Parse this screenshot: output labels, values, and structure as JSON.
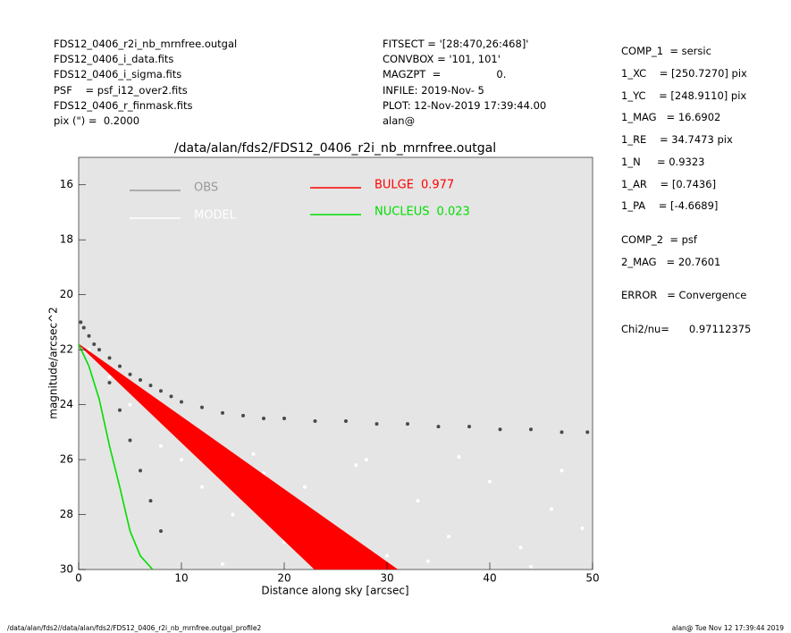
{
  "header": {
    "left": [
      "FDS12_0406_r2i_nb_mrnfree.outgal",
      "FDS12_0406_i_data.fits",
      "FDS12_0406_i_sigma.fits",
      "PSF    = psf_i12_over2.fits",
      "FDS12_0406_r_finmask.fits",
      "pix (\") =  0.2000"
    ],
    "middle": [
      "FITSECT = '[28:470,26:468]'",
      "CONVBOX = '101, 101'",
      "MAGZPT  =                 0.",
      "INFILE: 2019-Nov- 5",
      "PLOT: 12-Nov-2019 17:39:44.00",
      "alan@"
    ],
    "right": [
      "COMP_1  = sersic",
      "1_XC    = [250.7270] pix",
      "1_YC    = [248.9110] pix",
      "1_MAG   = 16.6902",
      "1_RE    = 34.7473 pix",
      "1_N     = 0.9323",
      "1_AR    = [0.7436]",
      "1_PA    = [-4.6689]",
      "COMP_2  = psf",
      "2_MAG   = 20.7601",
      "ERROR   = Convergence",
      "Chi2/nu=      0.97112375"
    ]
  },
  "footer": {
    "left": "/data/alan/fds2//data/alan/fds2/FDS12_0406_r2i_nb_mrnfree.outgal_profile2",
    "right": "alan@  Tue Nov 12 17:39:44 2019"
  },
  "chart_data": {
    "type": "scatter",
    "title": "/data/alan/fds2/FDS12_0406_r2i_nb_mrnfree.outgal",
    "x_label": "Distance along sky [arcsec]",
    "y_label": "magnitude/arcsec^2",
    "xlim": [
      0,
      50
    ],
    "ylim": [
      15,
      30
    ],
    "y_inverted": true,
    "xticks": [
      0,
      10,
      20,
      30,
      40,
      50
    ],
    "yticks": [
      16,
      18,
      20,
      22,
      24,
      26,
      28,
      30
    ],
    "background": "#e5e5e5",
    "series": [
      {
        "name": "OBS",
        "color": "#4a4a4a",
        "legend_color": "#999999",
        "x": [
          0.2,
          0.5,
          1,
          1.5,
          2,
          3,
          4,
          5,
          6,
          7,
          8,
          9,
          10,
          12,
          14,
          16,
          18,
          20,
          23,
          26,
          29,
          32,
          35,
          38,
          41,
          44,
          47,
          49.5,
          3,
          4,
          5,
          6,
          7,
          8
        ],
        "values": [
          21.0,
          21.2,
          21.5,
          21.8,
          22.0,
          22.3,
          22.6,
          22.9,
          23.1,
          23.3,
          23.5,
          23.7,
          23.9,
          24.1,
          24.3,
          24.4,
          24.5,
          24.5,
          24.6,
          24.6,
          24.7,
          24.7,
          24.8,
          24.8,
          24.9,
          24.9,
          25.0,
          25.0,
          23.2,
          24.2,
          25.3,
          26.4,
          27.5,
          28.6
        ]
      },
      {
        "name": "MODEL",
        "color": "#ffffff",
        "legend_color": "#ffffff",
        "x": [
          1,
          3,
          5,
          8,
          10,
          12,
          15,
          18,
          20,
          22,
          25,
          28,
          30,
          33,
          36,
          40,
          43,
          46,
          49,
          14,
          24,
          34,
          44,
          17,
          27,
          37,
          47
        ],
        "values": [
          22,
          23,
          24,
          25.5,
          26,
          27,
          28,
          26.5,
          29,
          27,
          28.5,
          26,
          29.5,
          27.5,
          28.8,
          26.8,
          29.2,
          27.8,
          28.5,
          29.8,
          29.9,
          29.7,
          29.9,
          25.8,
          26.2,
          25.9,
          26.4
        ]
      },
      {
        "name": "BULGE",
        "fraction": 0.977,
        "color": "#ff0000",
        "kind": "band",
        "x": [
          0,
          31,
          23
        ],
        "values": [
          21.8,
          30,
          30
        ]
      },
      {
        "name": "NUCLEUS",
        "fraction": 0.023,
        "color": "#00dd00",
        "kind": "line",
        "x": [
          0,
          1,
          2,
          3,
          4,
          5,
          6,
          7.2
        ],
        "values": [
          21.8,
          22.6,
          23.8,
          25.5,
          27,
          28.6,
          29.5,
          30
        ]
      }
    ]
  }
}
